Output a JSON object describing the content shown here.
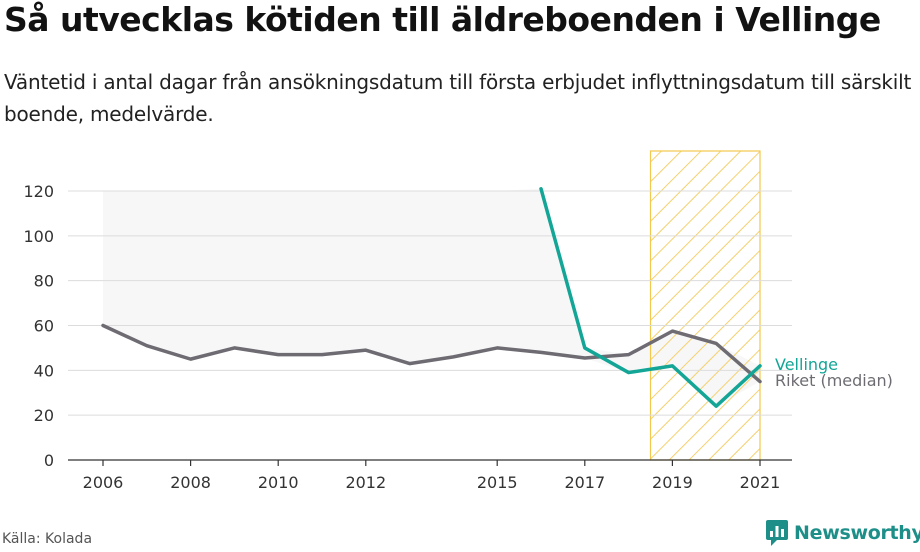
{
  "title": "Så utvecklas kötiden till äldreboenden i Vellinge",
  "subtitle": "Väntetid i antal dagar från ansökningsdatum till första erbjudet inflyttningsdatum till särskilt boende, medelvärde.",
  "source": "Källa: Kolada",
  "brand": "Newsworthy",
  "colors": {
    "vellinge": "#13a596",
    "riket": "#6e6c72",
    "highlight_stroke": "#f2c94c",
    "brand": "#1d8f88"
  },
  "chart_data": {
    "type": "line",
    "x_ticks": [
      2006,
      2008,
      2010,
      2012,
      2015,
      2017,
      2019,
      2021
    ],
    "y_ticks": [
      0,
      20,
      40,
      60,
      80,
      100,
      120
    ],
    "xlim": [
      2006,
      2021
    ],
    "ylim": [
      0,
      120
    ],
    "highlight_range": [
      2018.5,
      2021
    ],
    "series": [
      {
        "name": "Vellinge",
        "x": [
          2016,
          2017,
          2018,
          2019,
          2020,
          2021
        ],
        "values": [
          121,
          50,
          39,
          42,
          24,
          42
        ]
      },
      {
        "name": "Riket (median)",
        "x": [
          2006,
          2007,
          2008,
          2009,
          2010,
          2011,
          2012,
          2013,
          2014,
          2015,
          2016,
          2017,
          2018,
          2019,
          2020,
          2021
        ],
        "values": [
          60,
          51,
          45,
          50,
          47,
          47,
          49,
          43,
          46,
          50,
          48,
          45.5,
          47,
          57.5,
          52,
          35
        ]
      }
    ]
  }
}
